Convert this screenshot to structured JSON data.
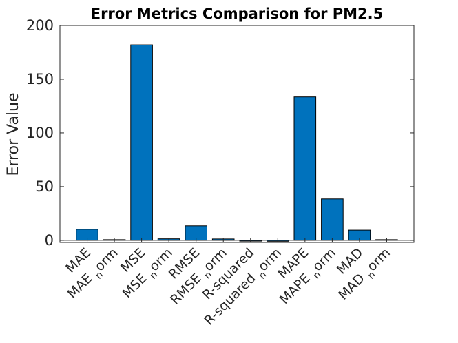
{
  "chart_data": {
    "type": "bar",
    "title": "Error Metrics Comparison for PM2.5",
    "xlabel": "",
    "ylabel": "Error Value",
    "ylim": [
      -2,
      200
    ],
    "yticks": [
      0,
      50,
      100,
      150,
      200
    ],
    "categories": [
      {
        "base": "MAE",
        "sub": ""
      },
      {
        "base": "MAE",
        "sub": "n",
        "rest": "orm"
      },
      {
        "base": "MSE",
        "sub": ""
      },
      {
        "base": "MSE",
        "sub": "n",
        "rest": "orm"
      },
      {
        "base": "RMSE",
        "sub": ""
      },
      {
        "base": "RMSE",
        "sub": "n",
        "rest": "orm"
      },
      {
        "base": "R-squared",
        "sub": ""
      },
      {
        "base": "R-squared",
        "sub": "n",
        "rest": "orm"
      },
      {
        "base": "MAPE",
        "sub": ""
      },
      {
        "base": "MAPE",
        "sub": "n",
        "rest": "orm"
      },
      {
        "base": "MAD",
        "sub": ""
      },
      {
        "base": "MAD",
        "sub": "n",
        "rest": "orm"
      }
    ],
    "values": [
      10.3,
      0.6,
      182,
      1.4,
      13.5,
      1.3,
      -0.8,
      -0.9,
      133.5,
      38.5,
      9.5,
      0.6
    ],
    "bar_color": "#0072BD",
    "grid": false
  }
}
